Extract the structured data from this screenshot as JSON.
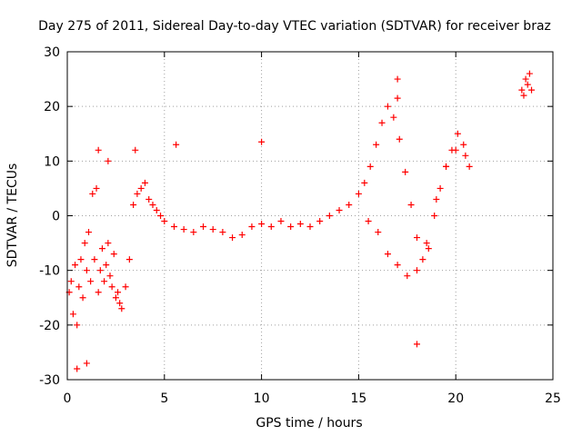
{
  "chart_data": {
    "type": "scatter",
    "title": "Day 275 of 2011, Sidereal Day-to-day VTEC variation (SDTVAR) for receiver braz",
    "xlabel": "GPS time / hours",
    "ylabel": "SDTVAR / TECUs",
    "xlim": [
      0,
      25
    ],
    "ylim": [
      -30,
      30
    ],
    "xticks": [
      "0",
      "5",
      "10",
      "15",
      "20",
      "25"
    ],
    "yticks": [
      "-30",
      "-20",
      "-10",
      "0",
      "10",
      "20",
      "30"
    ],
    "grid": true,
    "marker": "+",
    "series": [
      {
        "name": "SDTVAR",
        "color": "#ff0000",
        "x": [
          0.1,
          0.2,
          0.3,
          0.4,
          0.5,
          0.6,
          0.7,
          0.8,
          0.9,
          1.0,
          1.1,
          1.2,
          1.3,
          1.4,
          1.5,
          1.6,
          1.7,
          1.8,
          1.9,
          2.0,
          2.1,
          2.2,
          2.3,
          2.4,
          2.5,
          2.6,
          2.7,
          2.8,
          3.0,
          3.2,
          3.4,
          3.6,
          3.8,
          4.0,
          4.2,
          4.4,
          4.6,
          4.8,
          5.0,
          5.5,
          6.0,
          6.5,
          7.0,
          7.5,
          8.0,
          8.5,
          9.0,
          9.5,
          10.0,
          10.5,
          11.0,
          11.5,
          12.0,
          12.5,
          13.0,
          13.5,
          14.0,
          14.5,
          15.0,
          15.3,
          15.6,
          15.9,
          16.2,
          16.5,
          16.8,
          17.1,
          17.4,
          17.7,
          18.0,
          18.3,
          18.6,
          18.9,
          19.2,
          19.5,
          19.8,
          20.1,
          20.4,
          20.7,
          15.5,
          16.0,
          16.5,
          17.0,
          17.5,
          18.0,
          18.5,
          19.0,
          19.5,
          20.0,
          20.5,
          23.4,
          23.5,
          23.6,
          23.7,
          23.8,
          23.9,
          0.5,
          1.6,
          1.0,
          2.1,
          3.5,
          5.6,
          10.0,
          17.0,
          17.0,
          18.0
        ],
        "y": [
          -14,
          -12,
          -18,
          -9,
          -20,
          -13,
          -8,
          -15,
          -5,
          -10,
          -3,
          -12,
          4,
          -8,
          5,
          -14,
          -10,
          -6,
          -12,
          -9,
          -5,
          -11,
          -13,
          -7,
          -15,
          -14,
          -16,
          -17,
          -13,
          -8,
          2,
          4,
          5,
          6,
          3,
          2,
          1,
          0,
          -1,
          -2,
          -2.5,
          -3,
          -2,
          -2.5,
          -3,
          -4,
          -3.5,
          -2,
          -1.5,
          -2,
          -1,
          -2,
          -1.5,
          -2,
          -1,
          0,
          1,
          2,
          4,
          6,
          9,
          13,
          17,
          20,
          18,
          14,
          8,
          2,
          -4,
          -8,
          -6,
          0,
          5,
          9,
          12,
          15,
          13,
          9,
          -1,
          -3,
          -7,
          -9,
          -11,
          -10,
          -5,
          3,
          9,
          12,
          11,
          23,
          22,
          25,
          24,
          26,
          23,
          -28,
          12,
          -27,
          10,
          12,
          13,
          13.5,
          25,
          21.5,
          -23.5
        ]
      }
    ]
  }
}
